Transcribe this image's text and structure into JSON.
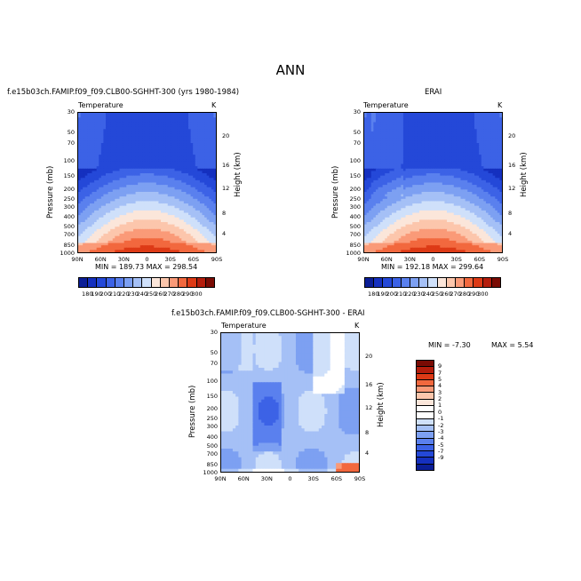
{
  "title": "ANN",
  "panels": [
    {
      "header_left": "f.e15b03ch.FAMIP.f09_f09.CLB00-SGHHT-300 (yrs 1980-1984)",
      "variable": "Temperature",
      "units": "K",
      "ylabel": "Pressure (mb)",
      "y2label": "Height (km)",
      "stats": "MIN = 189.73   MAX = 298.54"
    },
    {
      "header_left": "ERAI",
      "variable": "Temperature",
      "units": "K",
      "ylabel": "Pressure (mb)",
      "y2label": "Height (km)",
      "stats": "MIN = 192.18   MAX = 299.64"
    },
    {
      "header_left": "f.e15b03ch.FAMIP.f09_f09.CLB00-SGHHT-300 - ERAI",
      "variable": "Temperature",
      "units": "K",
      "ylabel": "Pressure (mb)",
      "y2label": "Height (km)",
      "stats_min": "MIN =  -7.30",
      "stats_max": "MAX =   5.54"
    }
  ],
  "pressure_ticks": [
    "30",
    "50",
    "70",
    "100",
    "150",
    "200",
    "250",
    "300",
    "400",
    "500",
    "700",
    "850",
    "1000"
  ],
  "height_ticks": [
    "20",
    "16",
    "12",
    "8",
    "4"
  ],
  "lat_ticks": [
    "90N",
    "60N",
    "30N",
    "0",
    "30S",
    "60S",
    "90S"
  ],
  "abs_colorbar": {
    "labels": [
      "180",
      "190",
      "200",
      "210",
      "220",
      "230",
      "240",
      "250",
      "260",
      "270",
      "280",
      "290",
      "300"
    ],
    "colors": [
      "#0b1e96",
      "#1530bf",
      "#2448d8",
      "#3c62e6",
      "#5a80ee",
      "#7da0f2",
      "#a5c0f6",
      "#cfe0fa",
      "#fbe6da",
      "#fcc6ac",
      "#fa9a78",
      "#f2683e",
      "#dd3a16",
      "#b41d0c",
      "#7a0b04"
    ]
  },
  "diff_colorbar": {
    "labels": [
      "9",
      "7",
      "5",
      "4",
      "3",
      "2",
      "1",
      "0",
      "-1",
      "-2",
      "-3",
      "-4",
      "-5",
      "-7",
      "-9"
    ],
    "colors": [
      "#7a0b04",
      "#b41d0c",
      "#dd3a16",
      "#f2683e",
      "#fa9a78",
      "#fcc6ac",
      "#fbe6da",
      "#ffffff",
      "#ffffff",
      "#cfe0fa",
      "#a5c0f6",
      "#7da0f2",
      "#5a80ee",
      "#3c62e6",
      "#2448d8",
      "#1530bf",
      "#0b1e96"
    ]
  },
  "chart_data": [
    {
      "type": "heatmap",
      "title": "Temperature",
      "xlabel": "",
      "ylabel": "Pressure (mb)",
      "y2label": "Height (km)",
      "x_ticks": [
        "90N",
        "60N",
        "30N",
        "0",
        "30S",
        "60S",
        "90S"
      ],
      "min": 189.73,
      "max": 298.54,
      "units": "K"
    },
    {
      "type": "heatmap",
      "title": "Temperature",
      "xlabel": "",
      "ylabel": "Pressure (mb)",
      "y2label": "Height (km)",
      "x_ticks": [
        "90N",
        "60N",
        "30N",
        "0",
        "30S",
        "60S",
        "90S"
      ],
      "min": 192.18,
      "max": 299.64,
      "units": "K"
    },
    {
      "type": "heatmap",
      "title": "Temperature",
      "xlabel": "",
      "ylabel": "Pressure (mb)",
      "y2label": "Height (km)",
      "x_ticks": [
        "90N",
        "60N",
        "30N",
        "0",
        "30S",
        "60S",
        "90S"
      ],
      "min": -7.3,
      "max": 5.54,
      "units": "K"
    }
  ]
}
